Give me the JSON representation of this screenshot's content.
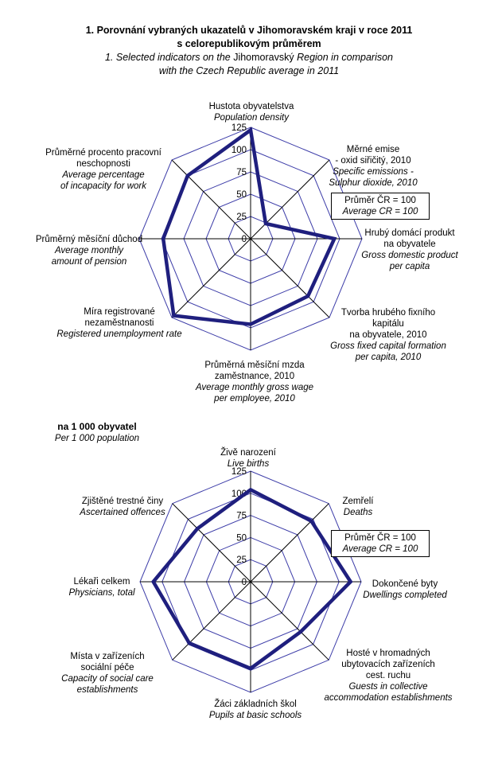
{
  "title": {
    "cs_line1": "1. Porovnání vybraných ukazatelů v Jihomoravském kraji v roce 2011",
    "cs_line2": "s celorepublikovým průměrem",
    "en_line1_pre": "1. Selected indicators on the ",
    "en_line1_name": "Jihomoravský",
    "en_line1_post": " Region in comparison",
    "en_line2": "with the Czech Republic average in 2011"
  },
  "legend": {
    "cs": "Průměr ČR = 100",
    "en": "Average CR = 100"
  },
  "colors": {
    "series": "#1F1F7E",
    "grid": "#3C3CA8",
    "spoke": "#000000",
    "text": "#000000",
    "background": "#FFFFFF"
  },
  "chart_data": [
    {
      "type": "radar",
      "max": 125,
      "rings": [
        0,
        25,
        50,
        75,
        100,
        125
      ],
      "legend_note_cs": "Průměr ČR = 100",
      "legend_note_en": "Average CR = 100",
      "axes": [
        {
          "cs": [
            "Hustota obyvatelstva"
          ],
          "en": [
            "Population density"
          ],
          "value": 122
        },
        {
          "cs": [
            "Měrné emise",
            "- oxid siřičitý, 2010"
          ],
          "en": [
            "Specific emissions -",
            "Sulphur dioxide, 2010"
          ],
          "value": 24
        },
        {
          "cs": [
            "Hrubý domácí produkt",
            "na obyvatele"
          ],
          "en": [
            "Gross domestic product",
            "per capita"
          ],
          "value": 94
        },
        {
          "cs": [
            "Tvorba hrubého fixního",
            "kapitálu",
            "na obyvatele, 2010"
          ],
          "en": [
            "Gross fixed capital formation",
            "per capita, 2010"
          ],
          "value": 91
        },
        {
          "cs": [
            "Průměrná měsíční mzda",
            "zaměstnance, 2010"
          ],
          "en": [
            "Average monthly gross wage",
            "per employee, 2010"
          ],
          "value": 96
        },
        {
          "cs": [
            "Míra registrované",
            "nezaměstnanosti"
          ],
          "en": [
            "Registered unemployment rate"
          ],
          "value": 122
        },
        {
          "cs": [
            "Průměrný měsíční důchod"
          ],
          "en": [
            "Average monthly",
            "amount of pension"
          ],
          "value": 98
        },
        {
          "cs": [
            "Průměrné procento pracovní",
            "neschopnosti"
          ],
          "en": [
            "Average percentage",
            "of incapacity for work"
          ],
          "value": 100
        }
      ]
    },
    {
      "type": "radar",
      "max": 125,
      "rings": [
        0,
        25,
        50,
        75,
        100,
        125
      ],
      "subtitle_cs": "na 1 000 obyvatel",
      "subtitle_en": "Per 1 000 population",
      "legend_note_cs": "Průměr ČR = 100",
      "legend_note_en": "Average CR = 100",
      "axes": [
        {
          "cs": [
            "Živě narození"
          ],
          "en": [
            "Live births"
          ],
          "value": 104
        },
        {
          "cs": [
            "Zemřelí"
          ],
          "en": [
            "Deaths"
          ],
          "value": 97
        },
        {
          "cs": [
            "Dokončené byty"
          ],
          "en": [
            "Dwellings completed"
          ],
          "value": 113
        },
        {
          "cs": [
            "Hosté v hromadných",
            "ubytovacích zařízeních",
            "cest. ruchu"
          ],
          "en": [
            "Guests in collective",
            "accommodation establishments"
          ],
          "value": 80
        },
        {
          "cs": [
            "Žáci základních škol"
          ],
          "en": [
            "Pupils at basic schools"
          ],
          "value": 98
        },
        {
          "cs": [
            "Místa v zařízeních",
            "sociální péče"
          ],
          "en": [
            "Capacity of social care",
            "establishments"
          ],
          "value": 98
        },
        {
          "cs": [
            "Lékaři celkem"
          ],
          "en": [
            "Physicians, total"
          ],
          "value": 110
        },
        {
          "cs": [
            "Zjištěné trestné činy"
          ],
          "en": [
            "Ascertained offences"
          ],
          "value": 85
        }
      ]
    }
  ]
}
